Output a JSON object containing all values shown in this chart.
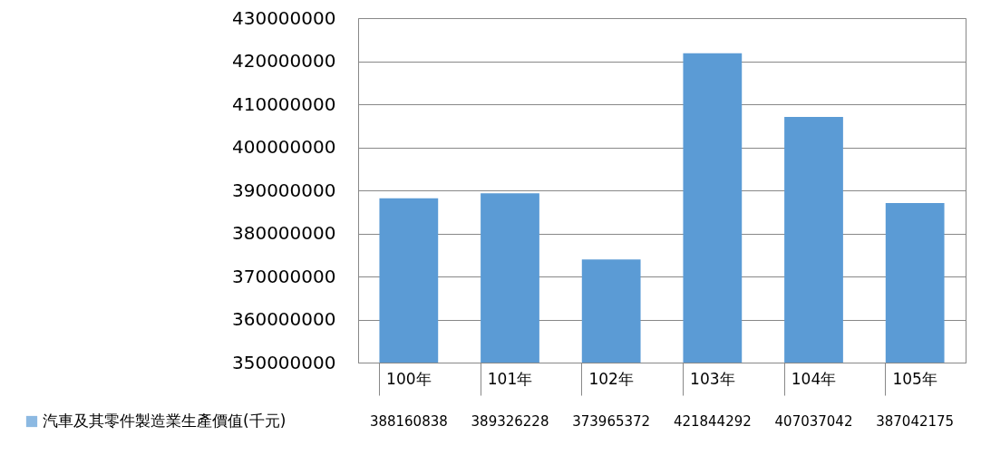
{
  "chart_data": {
    "type": "bar",
    "categories": [
      "100年",
      "101年",
      "102年",
      "103年",
      "104年",
      "105年"
    ],
    "series": [
      {
        "name": "汽車及其零件製造業生產價值(千元)",
        "color": "#5b9bd5",
        "values": [
          388160838,
          389326228,
          373965372,
          421844292,
          407037042,
          387042175
        ]
      }
    ],
    "ylim": [
      350000000,
      430000000
    ],
    "yticks": [
      350000000,
      360000000,
      370000000,
      380000000,
      390000000,
      400000000,
      410000000,
      420000000,
      430000000
    ],
    "grid": "y",
    "data_labels": true,
    "legend": "bottom"
  }
}
